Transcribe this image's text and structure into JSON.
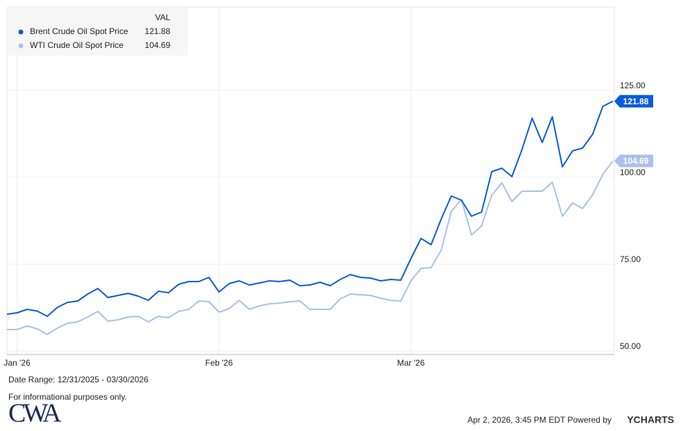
{
  "chart_data": {
    "type": "line",
    "categories": [
      null,
      "Jan '26",
      null,
      null,
      null,
      null,
      null,
      null,
      null,
      null,
      null,
      null,
      null,
      null,
      null,
      null,
      null,
      null,
      null,
      null,
      null,
      "Feb '26",
      null,
      null,
      null,
      null,
      null,
      null,
      null,
      null,
      null,
      null,
      null,
      null,
      null,
      null,
      null,
      null,
      null,
      null,
      "Mar '26",
      null,
      null,
      null,
      null,
      null,
      null,
      null,
      null,
      null,
      null,
      null,
      null,
      null,
      null,
      null,
      null,
      null,
      null,
      null,
      null
    ],
    "series": [
      {
        "name": "Brent Crude Oil Spot Price",
        "color": "#0b5cd5",
        "values": [
          60.6,
          61.0,
          62.0,
          61.5,
          60.0,
          62.6,
          64.0,
          64.4,
          66.4,
          68.0,
          65.4,
          66.0,
          66.6,
          65.8,
          64.6,
          67.2,
          66.8,
          69.2,
          70.0,
          70.0,
          71.2,
          67.0,
          69.4,
          70.2,
          69.0,
          69.6,
          70.2,
          70.0,
          70.4,
          68.8,
          69.0,
          69.8,
          68.8,
          70.6,
          72.0,
          71.2,
          71.0,
          70.2,
          70.6,
          70.4,
          76.6,
          82.4,
          80.6,
          88.0,
          94.6,
          93.4,
          88.8,
          90.0,
          101.6,
          102.6,
          100.2,
          108.0,
          117.0,
          110.0,
          117.4,
          103.0,
          107.6,
          108.4,
          112.4,
          120.4,
          121.88
        ]
      },
      {
        "name": "WTI Crude Oil Spot Price",
        "color": "#a9c1e8",
        "values": [
          56.2,
          56.2,
          57.2,
          56.4,
          54.8,
          56.6,
          58.0,
          58.4,
          59.8,
          61.4,
          58.6,
          59.0,
          59.8,
          60.0,
          58.4,
          60.0,
          59.6,
          61.4,
          62.0,
          64.4,
          64.2,
          61.2,
          62.2,
          64.6,
          62.0,
          63.0,
          63.6,
          63.8,
          64.2,
          64.4,
          62.0,
          62.0,
          62.0,
          65.0,
          66.4,
          66.2,
          66.0,
          65.2,
          64.6,
          64.4,
          70.2,
          73.8,
          74.0,
          79.0,
          90.2,
          93.6,
          83.4,
          86.0,
          94.8,
          98.4,
          93.0,
          96.0,
          96.0,
          96.0,
          98.6,
          88.8,
          92.6,
          91.0,
          95.0,
          100.8,
          104.69
        ]
      }
    ],
    "ylim": [
      49,
      149
    ],
    "yticks": [
      {
        "value": 50,
        "label": "50.00"
      },
      {
        "value": 75,
        "label": "75.00"
      },
      {
        "value": 100,
        "label": "100.00"
      },
      {
        "value": 125,
        "label": "125.00"
      }
    ],
    "grid": true,
    "legend": {
      "header": "VAL",
      "position": "top-left"
    }
  },
  "footer": {
    "date_range": "Date Range: 12/31/2025 - 03/30/2026",
    "disclaimer": "For informational purposes only.",
    "logo": "CWA",
    "timestamp": "Apr 2, 2026, 3:45 PM EDT Powered by",
    "brand": "YCHARTS"
  }
}
